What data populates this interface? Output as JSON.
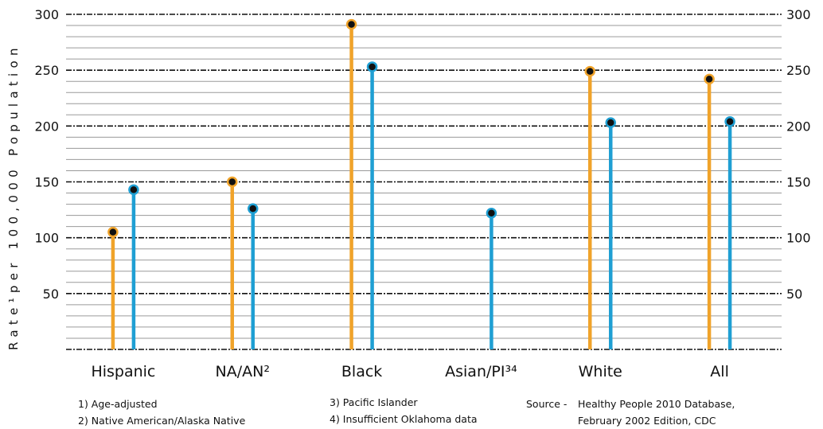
{
  "chart_data": {
    "type": "lollipop",
    "ylabel": "Rate¹per 100,000 Population",
    "ylim": [
      0,
      300
    ],
    "y_ticks": [
      50,
      100,
      150,
      200,
      250,
      300
    ],
    "y_minor_step": 10,
    "grid": true,
    "right_axis_labels": true,
    "categories": [
      "Hispanic",
      "NA/AN²",
      "Black",
      "Asian/PI³⁴",
      "White",
      "All"
    ],
    "series": [
      {
        "color": "#f0a32a",
        "values": [
          105,
          150,
          291,
          null,
          249,
          242
        ]
      },
      {
        "color": "#1f9fd3",
        "values": [
          143,
          126,
          253,
          122,
          203,
          204
        ]
      }
    ]
  },
  "footnotes": {
    "note1": "1) Age-adjusted",
    "note2": "2) Native American/Alaska Native",
    "note3": "3) Pacific Islander",
    "note4": "4) Insufficient Oklahoma data",
    "source_label": "Source -",
    "source_line1": "Healthy People 2010 Database,",
    "source_line2": "February 2002 Edition, CDC"
  }
}
